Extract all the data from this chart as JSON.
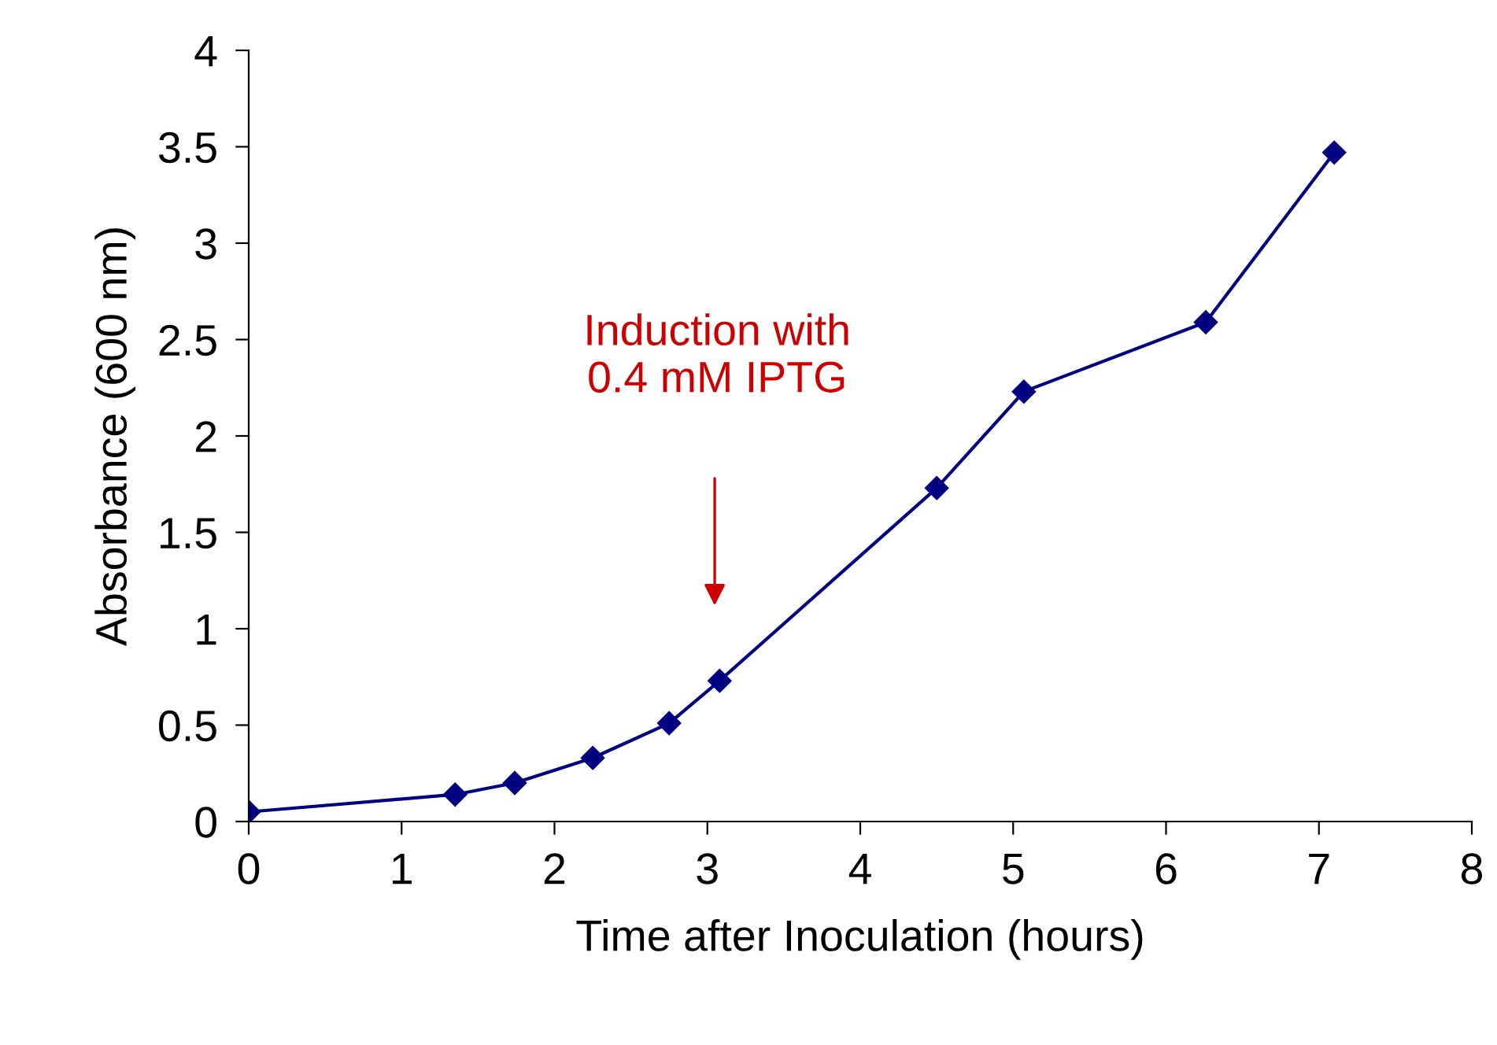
{
  "chart_data": {
    "type": "line",
    "xlabel": "Time after Inoculation (hours)",
    "ylabel": "Absorbance (600 nm)",
    "x": [
      0,
      1.35,
      1.74,
      2.25,
      2.75,
      3.08,
      4.5,
      5.07,
      6.26,
      7.1
    ],
    "series": [
      {
        "color": "#000080",
        "values": [
          0.05,
          0.14,
          0.2,
          0.33,
          0.51,
          0.73,
          1.73,
          2.23,
          2.59,
          3.47
        ]
      }
    ],
    "marker": "diamond",
    "line_style": "solid",
    "xlim": [
      0,
      8
    ],
    "xticks": [
      0,
      1,
      2,
      3,
      4,
      5,
      6,
      7,
      8
    ],
    "ylim": [
      0,
      4
    ],
    "yticks": [
      0,
      0.5,
      1,
      1.5,
      2,
      2.5,
      3,
      3.5,
      4
    ],
    "grid": false,
    "legend": false,
    "annotations": [
      "Induction with\n0.4 mM IPTG"
    ]
  }
}
